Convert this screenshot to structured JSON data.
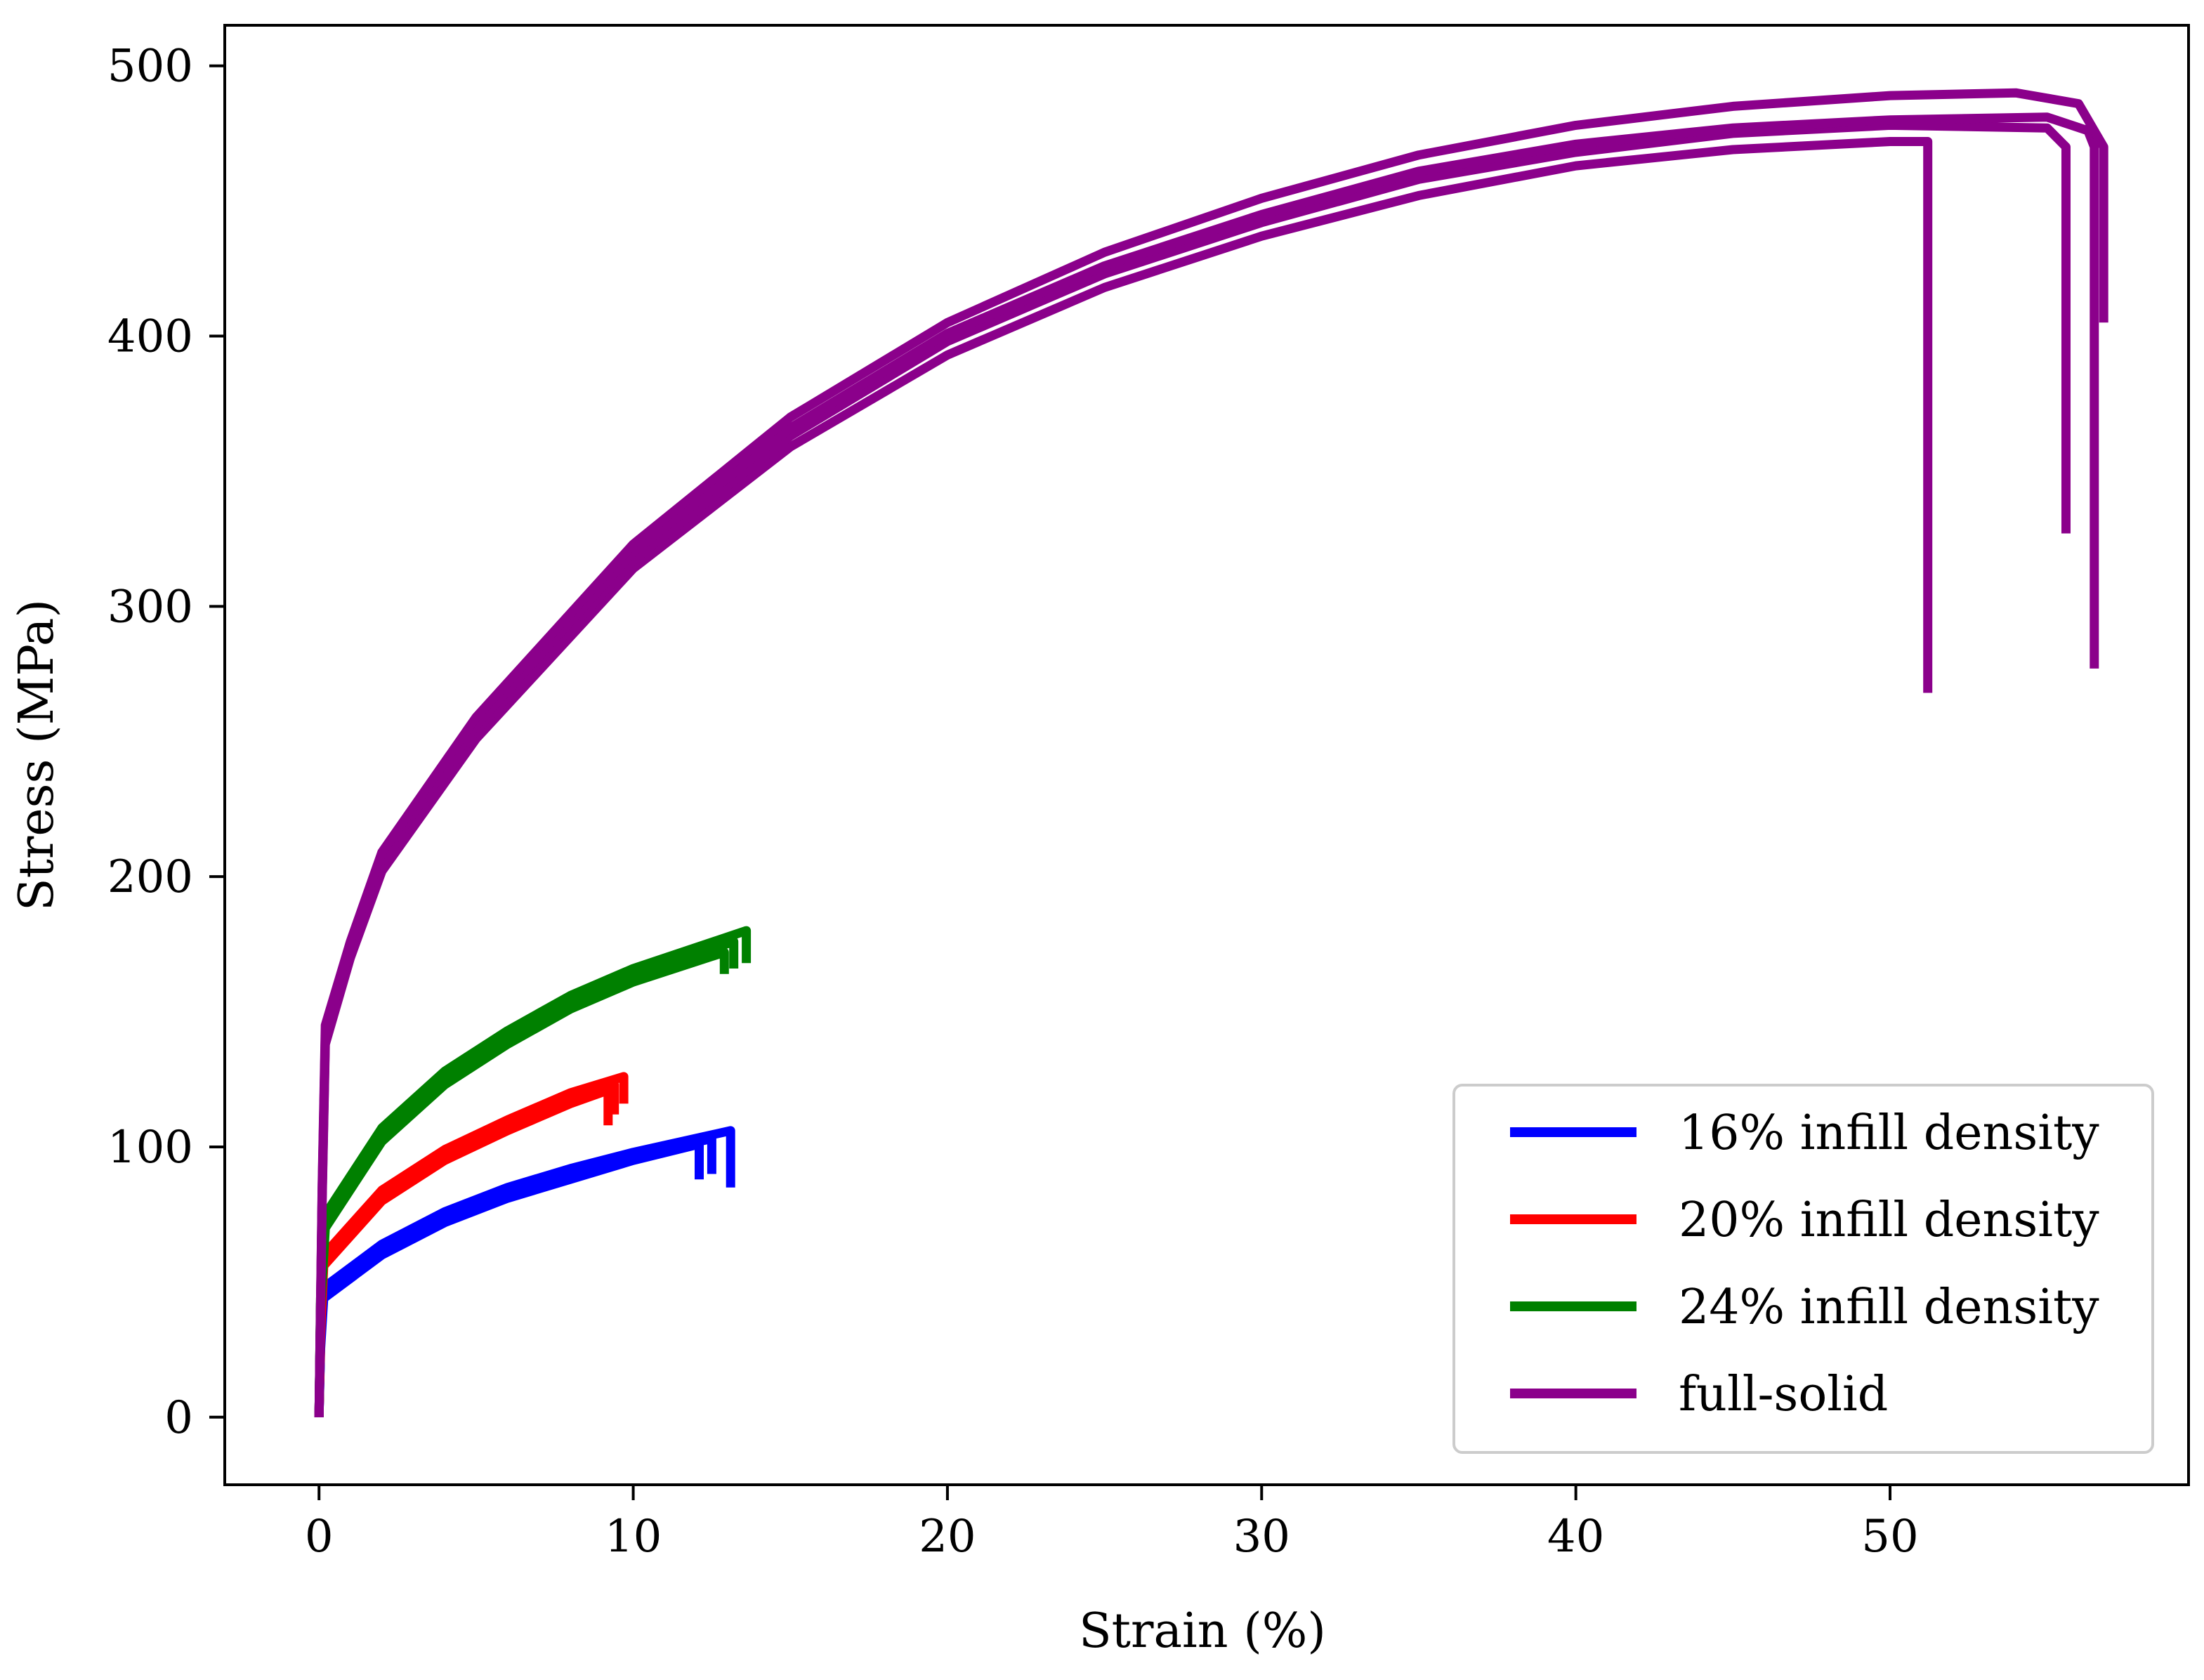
{
  "chart_data": {
    "type": "line",
    "title": "",
    "xlabel": "Strain (%)",
    "ylabel": "Stress (MPa)",
    "xlim": [
      -3,
      59.5
    ],
    "ylim": [
      -25,
      515
    ],
    "xticks": [
      0,
      10,
      20,
      30,
      40,
      50
    ],
    "yticks": [
      0,
      100,
      200,
      300,
      400,
      500
    ],
    "grid": false,
    "legend_position": "lower-right",
    "series": [
      {
        "name": "16% infill density",
        "color": "#0000ff",
        "curves": [
          [
            [
              0,
              0
            ],
            [
              0.05,
              25
            ],
            [
              0.15,
              44
            ],
            [
              2,
              60
            ],
            [
              4,
              72
            ],
            [
              6,
              81
            ],
            [
              8,
              88
            ],
            [
              10,
              95
            ],
            [
              12.1,
              101
            ],
            [
              12.1,
              88
            ]
          ],
          [
            [
              0,
              0
            ],
            [
              0.05,
              27
            ],
            [
              0.15,
              46
            ],
            [
              2,
              62
            ],
            [
              4,
              74
            ],
            [
              6,
              83
            ],
            [
              8,
              90
            ],
            [
              10,
              97
            ],
            [
              12.5,
              103
            ],
            [
              12.5,
              90
            ]
          ],
          [
            [
              0,
              0
            ],
            [
              0.05,
              28
            ],
            [
              0.15,
              48
            ],
            [
              2,
              64
            ],
            [
              4,
              76
            ],
            [
              6,
              85
            ],
            [
              8,
              92
            ],
            [
              10,
              98
            ],
            [
              13.1,
              106
            ],
            [
              13.1,
              85
            ]
          ]
        ]
      },
      {
        "name": "20% infill density",
        "color": "#ff0000",
        "curves": [
          [
            [
              0,
              0
            ],
            [
              0.05,
              30
            ],
            [
              0.15,
              56
            ],
            [
              2,
              80
            ],
            [
              4,
              95
            ],
            [
              6,
              106
            ],
            [
              8,
              116
            ],
            [
              9.2,
              121
            ],
            [
              9.2,
              108
            ]
          ],
          [
            [
              0,
              0
            ],
            [
              0.05,
              32
            ],
            [
              0.15,
              58
            ],
            [
              2,
              82
            ],
            [
              4,
              97
            ],
            [
              6,
              108
            ],
            [
              8,
              118
            ],
            [
              9.4,
              123
            ],
            [
              9.4,
              112
            ]
          ],
          [
            [
              0,
              0
            ],
            [
              0.05,
              33
            ],
            [
              0.15,
              60
            ],
            [
              2,
              84
            ],
            [
              4,
              99
            ],
            [
              6,
              110
            ],
            [
              8,
              120
            ],
            [
              9.7,
              126
            ],
            [
              9.7,
              116
            ]
          ]
        ]
      },
      {
        "name": "24% infill density",
        "color": "#008000",
        "curves": [
          [
            [
              0,
              0
            ],
            [
              0.05,
              40
            ],
            [
              0.2,
              70
            ],
            [
              2,
              102
            ],
            [
              4,
              123
            ],
            [
              6,
              138
            ],
            [
              8,
              151
            ],
            [
              10,
              161
            ],
            [
              12.9,
              172
            ],
            [
              12.9,
              164
            ]
          ],
          [
            [
              0,
              0
            ],
            [
              0.05,
              42
            ],
            [
              0.2,
              72
            ],
            [
              2,
              104
            ],
            [
              4,
              125
            ],
            [
              6,
              140
            ],
            [
              8,
              153
            ],
            [
              10,
              163
            ],
            [
              13.2,
              176
            ],
            [
              13.2,
              166
            ]
          ],
          [
            [
              0,
              0
            ],
            [
              0.05,
              44
            ],
            [
              0.2,
              75
            ],
            [
              2,
              107
            ],
            [
              4,
              128
            ],
            [
              6,
              143
            ],
            [
              8,
              156
            ],
            [
              10,
              166
            ],
            [
              13.6,
              180
            ],
            [
              13.6,
              168
            ]
          ]
        ]
      },
      {
        "name": "full-solid",
        "color": "#8b008b",
        "curves": [
          [
            [
              0,
              0
            ],
            [
              0.1,
              80
            ],
            [
              0.2,
              138
            ],
            [
              1,
              170
            ],
            [
              2,
              202
            ],
            [
              5,
              251
            ],
            [
              10,
              314
            ],
            [
              15,
              359
            ],
            [
              20,
              393
            ],
            [
              25,
              418
            ],
            [
              30,
              437
            ],
            [
              35,
              452
            ],
            [
              40,
              463
            ],
            [
              45,
              469
            ],
            [
              50,
              472
            ],
            [
              51.2,
              472
            ],
            [
              51.2,
              268
            ]
          ],
          [
            [
              0,
              0
            ],
            [
              0.1,
              82
            ],
            [
              0.2,
              140
            ],
            [
              1,
              172
            ],
            [
              2,
              205
            ],
            [
              5,
              254
            ],
            [
              10,
              317
            ],
            [
              15,
              363
            ],
            [
              20,
              398
            ],
            [
              25,
              423
            ],
            [
              30,
              442
            ],
            [
              35,
              458
            ],
            [
              40,
              468
            ],
            [
              45,
              475
            ],
            [
              50,
              478
            ],
            [
              55,
              477
            ],
            [
              55.6,
              470
            ],
            [
              55.6,
              327
            ]
          ],
          [
            [
              0,
              0
            ],
            [
              0.1,
              84
            ],
            [
              0.2,
              142
            ],
            [
              1,
              174
            ],
            [
              2,
              207
            ],
            [
              5,
              256
            ],
            [
              10,
              320
            ],
            [
              15,
              366
            ],
            [
              20,
              401
            ],
            [
              25,
              426
            ],
            [
              30,
              445
            ],
            [
              35,
              461
            ],
            [
              40,
              471
            ],
            [
              45,
              477
            ],
            [
              50,
              480
            ],
            [
              55,
              481
            ],
            [
              56.3,
              476
            ],
            [
              56.5,
              470
            ],
            [
              56.5,
              277
            ]
          ],
          [
            [
              0,
              0
            ],
            [
              0.1,
              86
            ],
            [
              0.2,
              145
            ],
            [
              1,
              176
            ],
            [
              2,
              209
            ],
            [
              5,
              259
            ],
            [
              10,
              323
            ],
            [
              15,
              370
            ],
            [
              20,
              405
            ],
            [
              25,
              431
            ],
            [
              30,
              451
            ],
            [
              35,
              467
            ],
            [
              40,
              478
            ],
            [
              45,
              485
            ],
            [
              50,
              489
            ],
            [
              54,
              490
            ],
            [
              56,
              486
            ],
            [
              56.8,
              470
            ],
            [
              56.8,
              405
            ]
          ]
        ]
      }
    ]
  }
}
